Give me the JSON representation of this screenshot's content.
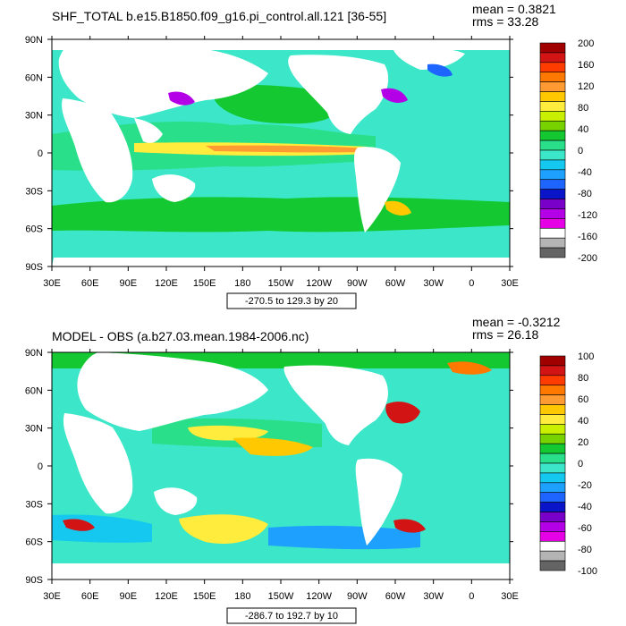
{
  "chart_data": [
    {
      "type": "heatmap",
      "title": "SHF_TOTAL b.e15.B1850.f09_g16.pi_control.all.121 [36-55]",
      "stats": {
        "mean": "mean = 0.3821",
        "rms": "rms = 33.28"
      },
      "x_ticks": [
        "30E",
        "60E",
        "90E",
        "120E",
        "150E",
        "180",
        "150W",
        "120W",
        "90W",
        "60W",
        "30W",
        "0",
        "30E"
      ],
      "y_ticks": [
        "90N",
        "60N",
        "30N",
        "0",
        "30S",
        "60S",
        "90S"
      ],
      "colorbar_levels": [
        "200",
        "160",
        "120",
        "80",
        "40",
        "0",
        "-40",
        "-80",
        "-120",
        "-160",
        "-200"
      ],
      "colorbar_colors": [
        "#a00000",
        "#d21414",
        "#ff3c00",
        "#ff7800",
        "#ff9b32",
        "#ffc800",
        "#ffec3c",
        "#c8f000",
        "#78d200",
        "#14c832",
        "#2adf8a",
        "#3ce6c8",
        "#14c8f0",
        "#1ea0ff",
        "#1e64ff",
        "#0a14c8",
        "#7800c8",
        "#b400e6",
        "#e600e6",
        "#ffffff",
        "#b4b4b4",
        "#646464"
      ],
      "contour_info": "-270.5 to 129.3 by 20"
    },
    {
      "type": "heatmap",
      "title": "MODEL - OBS (a.b27.03.mean.1984-2006.nc)",
      "stats": {
        "mean": "mean = -0.3212",
        "rms": "rms = 26.18"
      },
      "x_ticks": [
        "30E",
        "60E",
        "90E",
        "120E",
        "150E",
        "180",
        "150W",
        "120W",
        "90W",
        "60W",
        "30W",
        "0",
        "30E"
      ],
      "y_ticks": [
        "90N",
        "60N",
        "30N",
        "0",
        "30S",
        "60S",
        "90S"
      ],
      "colorbar_levels": [
        "100",
        "80",
        "60",
        "40",
        "20",
        "0",
        "-20",
        "-40",
        "-60",
        "-80",
        "-100"
      ],
      "colorbar_colors": [
        "#a00000",
        "#d21414",
        "#ff3c00",
        "#ff7800",
        "#ff9b32",
        "#ffc800",
        "#ffec3c",
        "#c8f000",
        "#78d200",
        "#14c832",
        "#2adf8a",
        "#3ce6c8",
        "#14c8f0",
        "#1ea0ff",
        "#1e64ff",
        "#0a14c8",
        "#7800c8",
        "#b400e6",
        "#e600e6",
        "#ffffff",
        "#b4b4b4",
        "#646464"
      ],
      "contour_info": "-286.7 to 192.7 by 10"
    }
  ]
}
